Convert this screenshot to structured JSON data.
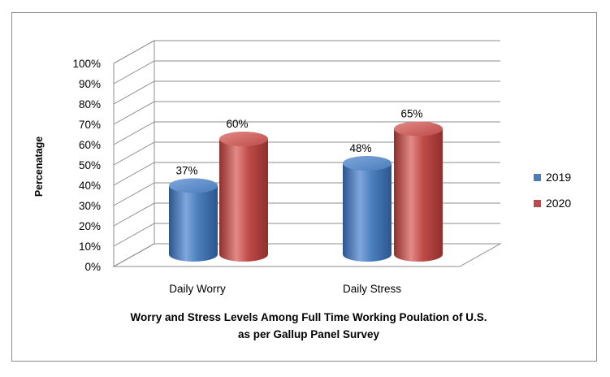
{
  "chart_data": {
    "type": "bar",
    "style": "3d-cylinder",
    "categories": [
      "Daily Worry",
      "Daily Stress"
    ],
    "series": [
      {
        "name": "2019",
        "color": "#4a7ebb",
        "values": [
          37,
          48
        ],
        "labels": [
          "37%",
          "48%"
        ]
      },
      {
        "name": "2020",
        "color": "#be4b48",
        "values": [
          60,
          65
        ],
        "labels": [
          "60%",
          "65%"
        ]
      }
    ],
    "ylabel": "Percenatage",
    "xlabel_line1": "Worry and Stress Levels Among Full Time Working Poulation of U.S.",
    "xlabel_line2": "as per Gallup Panel Survey",
    "ylim": [
      0,
      100
    ],
    "yticks": [
      "0%",
      "10%",
      "20%",
      "30%",
      "40%",
      "50%",
      "60%",
      "70%",
      "80%",
      "90%",
      "100%"
    ],
    "grid": true,
    "legend": "right"
  }
}
